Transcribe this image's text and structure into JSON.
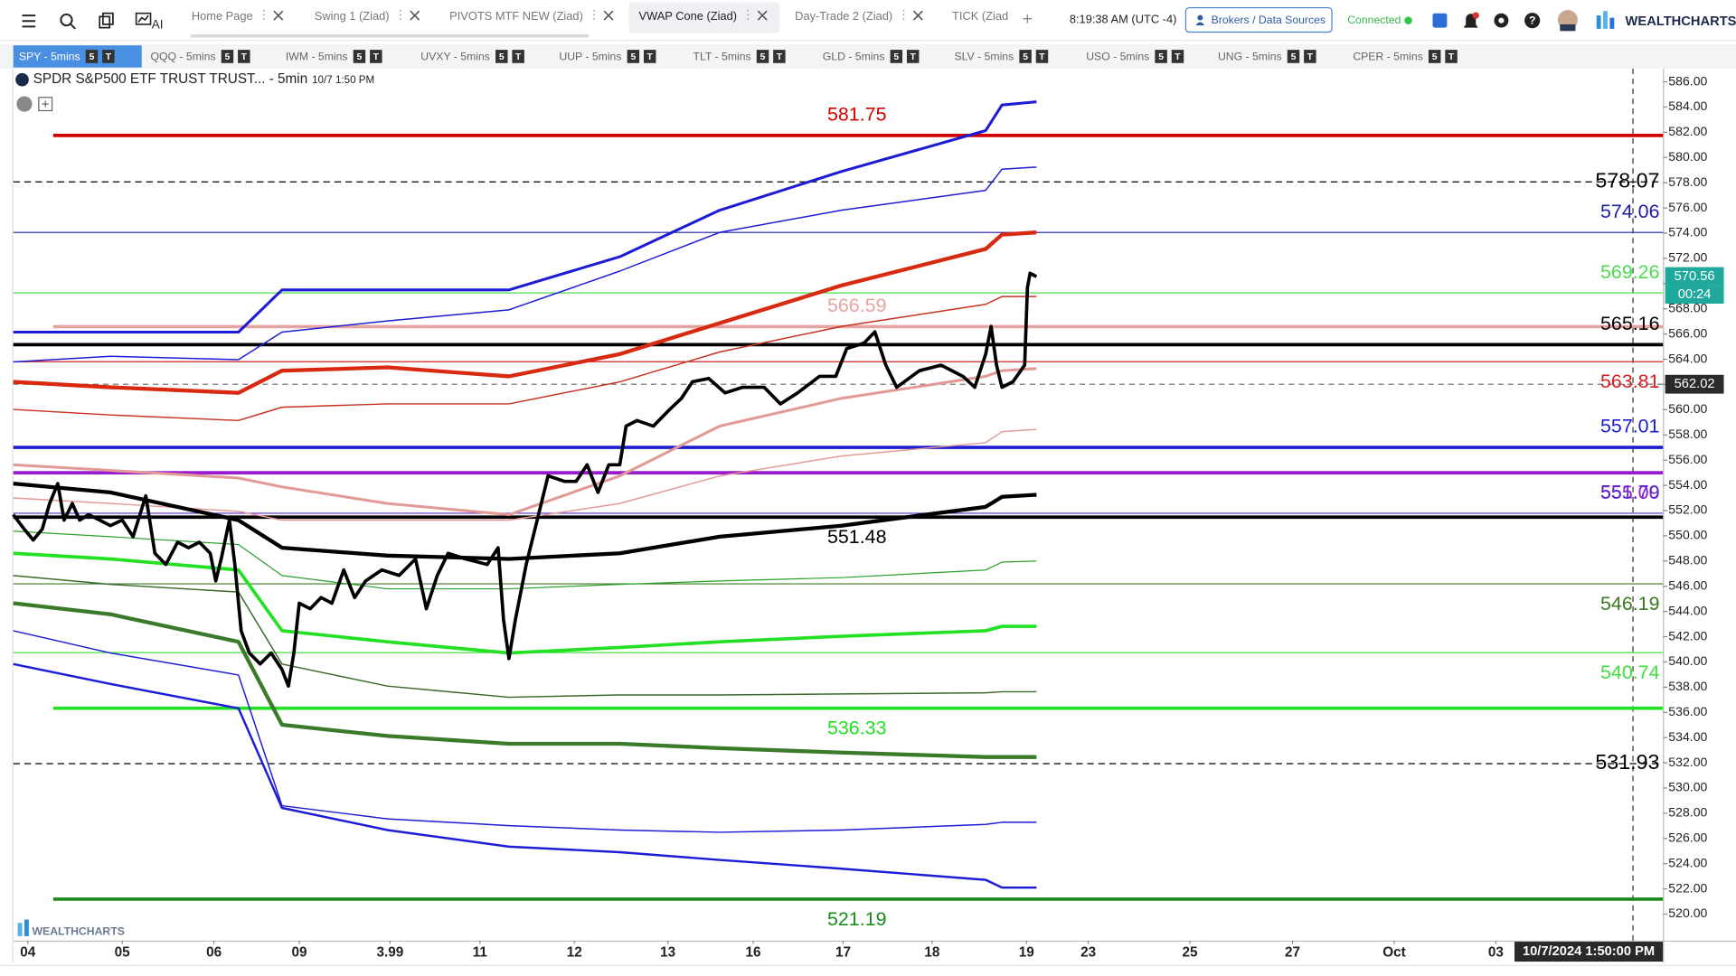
{
  "toolbar": {
    "ai": "AI",
    "tabs": [
      "Home Page",
      "Swing 1 (Ziad)",
      "PIVOTS MTF NEW (Ziad)",
      "VWAP Cone (Ziad)",
      "Day-Trade 2 (Ziad)",
      "TICK (Ziad"
    ],
    "active_tab": 3,
    "time": "8:19:38 AM",
    "timezone": "(UTC -4)",
    "brokers": "Brokers / Data Sources",
    "status": "Connected",
    "brand": "WEALTHCHARTS"
  },
  "symbol_tabs": [
    "SPY - 5mins",
    "QQQ - 5mins",
    "IWM - 5mins",
    "UVXY - 5mins",
    "UUP - 5mins",
    "TLT - 5mins",
    "GLD - 5mins",
    "SLV - 5mins",
    "USO - 5mins",
    "UNG - 5mins",
    "CPER - 5mins"
  ],
  "active_symbol": 0,
  "badges": [
    "5",
    "T"
  ],
  "chart_data": {
    "type": "line",
    "title": "SPDR S&P500 ETF TRUST TRUST... - 5min",
    "subtitle": "10/7 1:50 PM",
    "watermark": "WEALTHCHARTS",
    "xlim": [
      -0.16,
      18.01
    ],
    "xticks": [
      {
        "value": 0,
        "label": "04"
      },
      {
        "value": 1.04,
        "label": "05"
      },
      {
        "value": 2.05,
        "label": "06"
      },
      {
        "value": 2.99,
        "label": "09"
      },
      3.99,
      {
        "value": 4.98,
        "label": "11"
      },
      {
        "value": 6.02,
        "label": "12"
      },
      {
        "value": 7.05,
        "label": "13"
      },
      {
        "value": 7.99,
        "label": "16"
      },
      {
        "value": 8.98,
        "label": "17"
      },
      {
        "value": 9.96,
        "label": "18"
      },
      {
        "value": 11.0,
        "label": "19"
      },
      {
        "value": 11.68,
        "label": "23"
      },
      {
        "value": 12.8,
        "label": "25"
      },
      {
        "value": 13.93,
        "label": "27"
      },
      {
        "value": 15.05,
        "label": "Oct"
      },
      {
        "value": 16.17,
        "label": "03"
      }
    ],
    "ylim": [
      517.9,
      587.05
    ],
    "yticks": [
      {
        "value": 520,
        "label": "520.00"
      },
      {
        "value": 522,
        "label": "522.00"
      },
      {
        "value": 524,
        "label": "524.00"
      },
      {
        "value": 526,
        "label": "526.00"
      },
      {
        "value": 528,
        "label": "528.00"
      },
      {
        "value": 530,
        "label": "530.00"
      },
      {
        "value": 532,
        "label": "532.00"
      },
      {
        "value": 534,
        "label": "534.00"
      },
      {
        "value": 536,
        "label": "536.00"
      },
      {
        "value": 538,
        "label": "538.00"
      },
      {
        "value": 540,
        "label": "540.00"
      },
      {
        "value": 542,
        "label": "542.00"
      },
      {
        "value": 544,
        "label": "544.00"
      },
      {
        "value": 546,
        "label": "546.00"
      },
      {
        "value": 548,
        "label": "548.00"
      },
      {
        "value": 550,
        "label": "550.00"
      },
      {
        "value": 552,
        "label": "552.00"
      },
      {
        "value": 554,
        "label": "554.00"
      },
      {
        "value": 556,
        "label": "556.00"
      },
      {
        "value": 558,
        "label": "558.00"
      },
      {
        "value": 560,
        "label": "560.00"
      },
      {
        "value": 562,
        "label": "562.00"
      },
      {
        "value": 564,
        "label": "564.00"
      },
      {
        "value": 566,
        "label": "566.00"
      },
      {
        "value": 568,
        "label": "568.00"
      },
      {
        "value": 570,
        "label": "570.00"
      },
      {
        "value": 572,
        "label": "572.00"
      },
      {
        "value": 574,
        "label": "574.00"
      },
      {
        "value": 576,
        "label": "576.00"
      },
      {
        "value": 578,
        "label": "578.00"
      },
      {
        "value": 580,
        "label": "580.00"
      },
      {
        "value": 582,
        "label": "582.00"
      },
      {
        "value": 584,
        "label": "584.00"
      },
      {
        "value": 586,
        "label": "586.00"
      }
    ],
    "grid": false,
    "crosshair": {
      "x": 17.68,
      "x_label": "10/7/2024 1:50:00 PM",
      "y": 562.02
    },
    "last_price": 570.56,
    "countdown": "00:24",
    "last_price_color": "#1fa89c",
    "levels": [
      {
        "value": 581.75,
        "label": "581.75",
        "color": "#d40000",
        "width": 3,
        "style": "solid",
        "from": 0.28,
        "label_pos": "center",
        "label_side": "above"
      },
      {
        "value": 578.07,
        "label": "578.07",
        "color": "#000000",
        "width": 1,
        "style": "dashed",
        "label_pos": "right",
        "label_side": "on"
      },
      {
        "value": 574.06,
        "label": "574.06",
        "color": "#1c1ca6",
        "width": 1,
        "style": "solid",
        "label_pos": "right",
        "label_side": "above"
      },
      {
        "value": 569.26,
        "label": "569.26",
        "color": "#4cdc4c",
        "width": 1,
        "style": "solid",
        "label_pos": "right",
        "label_side": "above"
      },
      {
        "value": 566.59,
        "label": "566.59",
        "color": "#e6a4a0",
        "width": 3,
        "style": "solid",
        "from": 0.28,
        "label_pos": "center",
        "label_side": "above"
      },
      {
        "value": 565.16,
        "label": "565.16",
        "color": "#000000",
        "width": 3,
        "style": "solid",
        "label_pos": "right",
        "label_side": "above"
      },
      {
        "value": 563.81,
        "label": "563.81",
        "color": "#d42020",
        "width": 1,
        "style": "solid",
        "label_pos": "right",
        "label_side": "below"
      },
      {
        "value": 557.01,
        "label": "557.01",
        "color": "#1c1cd0",
        "width": 3,
        "style": "solid",
        "label_pos": "right",
        "label_side": "above"
      },
      {
        "value": 555,
        "label": "555.00",
        "color": "#9a1ad0",
        "width": 3,
        "style": "solid",
        "label_pos": "right",
        "label_side": "below"
      },
      {
        "value": 551.79,
        "label": "551.79",
        "color": "#5a2ad0",
        "width": 1,
        "style": "solid",
        "label_pos": "right",
        "label_side": "above"
      },
      {
        "value": 551.48,
        "label": "551.48",
        "color": "#000000",
        "width": 3,
        "style": "solid",
        "label_pos": "center",
        "label_side": "below"
      },
      {
        "value": 546.19,
        "label": "546.19",
        "color": "#3a7a20",
        "width": 1,
        "style": "solid",
        "label_pos": "right",
        "label_side": "below"
      },
      {
        "value": 540.74,
        "label": "540.74",
        "color": "#40e040",
        "width": 1,
        "style": "solid",
        "label_pos": "right",
        "label_side": "below"
      },
      {
        "value": 536.33,
        "label": "536.33",
        "color": "#22e022",
        "width": 3,
        "style": "solid",
        "from": 0.28,
        "label_pos": "center",
        "label_side": "below"
      },
      {
        "value": 531.93,
        "label": "531.93",
        "color": "#000000",
        "width": 1,
        "style": "dashed",
        "label_pos": "right",
        "label_side": "on"
      },
      {
        "value": 521.19,
        "label": "521.19",
        "color": "#1a8a1a",
        "width": 3,
        "style": "solid",
        "from": 0.28,
        "label_pos": "center",
        "label_side": "below"
      }
    ],
    "series": [
      {
        "color": "#1c1cd6",
        "width": 2.5,
        "x": [
          -0.16,
          0.91,
          2.32,
          2.8,
          3.96,
          5.3,
          6.52,
          7.62,
          8.96,
          10.55,
          10.73,
          11.11
        ],
        "values": [
          566.16,
          566.16,
          566.16,
          569.5,
          569.5,
          569.5,
          572.13,
          575.82,
          578.89,
          582.14,
          584.16,
          584.42
        ]
      },
      {
        "color": "#1c1cd6",
        "width": 1.2,
        "x": [
          -0.16,
          0.91,
          2.32,
          2.8,
          3.96,
          5.3,
          6.52,
          7.62,
          8.96,
          10.55,
          10.73,
          11.11
        ],
        "values": [
          563.79,
          564.23,
          563.97,
          566.16,
          567.04,
          567.92,
          570.99,
          574.06,
          575.82,
          577.4,
          579.07,
          579.24
        ]
      },
      {
        "color": "#d82a10",
        "width": 3.5,
        "x": [
          -0.16,
          0.91,
          2.32,
          2.8,
          3.96,
          5.3,
          6.52,
          7.62,
          8.96,
          10.55,
          10.73,
          11.11
        ],
        "values": [
          562.21,
          561.78,
          561.34,
          563.09,
          563.36,
          562.65,
          564.41,
          566.87,
          569.85,
          572.75,
          573.89,
          574.06
        ]
      },
      {
        "color": "#c83020",
        "width": 1.2,
        "x": [
          -0.16,
          0.91,
          2.32,
          2.8,
          3.96,
          5.3,
          6.52,
          7.62,
          8.96,
          10.55,
          10.73,
          11.11
        ],
        "values": [
          560.02,
          559.58,
          559.14,
          560.2,
          560.46,
          560.46,
          562.21,
          564.58,
          566.6,
          568.36,
          568.97,
          568.97
        ]
      },
      {
        "color": "#e29a96",
        "width": 2.5,
        "x": [
          -0.16,
          0.91,
          2.32,
          2.8,
          3.96,
          5.3,
          6.52,
          7.62,
          8.96,
          10.55,
          10.73,
          11.11
        ],
        "values": [
          555.63,
          555.19,
          554.58,
          553.88,
          552.56,
          551.68,
          554.75,
          558.7,
          560.9,
          562.65,
          563.09,
          563.27
        ]
      },
      {
        "color": "#e29a96",
        "width": 1.2,
        "x": [
          -0.16,
          0.91,
          2.32,
          2.8,
          3.96,
          5.3,
          6.52,
          7.62,
          8.96,
          10.55,
          10.73,
          11.11
        ],
        "values": [
          553.0,
          552.56,
          551.94,
          551.24,
          551.24,
          551.24,
          552.56,
          554.75,
          556.33,
          557.39,
          558.26,
          558.44
        ]
      },
      {
        "color": "#000000",
        "width": 3.5,
        "x": [
          -0.16,
          0.91,
          2.32,
          2.8,
          3.96,
          5.3,
          6.52,
          7.62,
          8.96,
          10.55,
          10.73,
          11.11
        ],
        "values": [
          554.14,
          553.44,
          551.24,
          549.05,
          548.43,
          548.17,
          548.61,
          549.93,
          550.8,
          552.3,
          553.09,
          553.26
        ]
      },
      {
        "color": "#2aa02a",
        "width": 1,
        "x": [
          -0.16,
          0.91,
          2.32,
          2.8,
          3.96,
          5.3,
          6.52,
          7.62,
          8.96,
          10.55,
          10.73,
          11.11
        ],
        "values": [
          550.37,
          549.93,
          549.31,
          546.85,
          545.8,
          545.8,
          546.15,
          546.42,
          546.68,
          547.29,
          547.91,
          548.0
        ]
      },
      {
        "color": "#22e022",
        "width": 3,
        "x": [
          -0.16,
          0.91,
          2.32,
          2.8,
          3.96,
          5.3,
          6.52,
          7.62,
          8.96,
          10.55,
          10.73,
          11.11
        ],
        "values": [
          548.61,
          548.17,
          547.29,
          542.47,
          541.59,
          540.71,
          541.15,
          541.59,
          542.03,
          542.47,
          542.82,
          542.82
        ]
      },
      {
        "color": "#3a6a2a",
        "width": 1.2,
        "x": [
          -0.16,
          0.91,
          2.32,
          2.8,
          3.96,
          5.3,
          6.52,
          7.62,
          8.96,
          10.55,
          10.73,
          11.11
        ],
        "values": [
          546.85,
          546.15,
          545.54,
          539.83,
          538.08,
          537.2,
          537.38,
          537.38,
          537.46,
          537.55,
          537.64,
          537.64
        ]
      },
      {
        "color": "#3a7a2a",
        "width": 3.5,
        "x": [
          -0.16,
          0.91,
          2.32,
          2.8,
          3.96,
          5.3,
          6.52,
          7.62,
          8.96,
          10.55,
          10.73,
          11.11
        ],
        "values": [
          544.66,
          543.78,
          541.59,
          535.01,
          534.13,
          533.51,
          533.51,
          533.16,
          532.81,
          532.46,
          532.46,
          532.46
        ]
      },
      {
        "color": "#1c1cd6",
        "width": 1.2,
        "x": [
          -0.16,
          0.91,
          2.32,
          2.8,
          3.96,
          5.3,
          6.52,
          7.62,
          8.96,
          10.55,
          10.73,
          11.11
        ],
        "values": [
          542.47,
          540.71,
          538.96,
          528.6,
          527.55,
          527.02,
          526.67,
          526.49,
          526.67,
          527.11,
          527.28,
          527.28
        ]
      },
      {
        "color": "#1c1cd6",
        "width": 2,
        "x": [
          -0.16,
          0.91,
          2.32,
          2.8,
          3.96,
          5.3,
          6.52,
          7.62,
          8.96,
          10.55,
          10.73,
          11.11
        ],
        "values": [
          539.83,
          538.25,
          536.32,
          528.42,
          526.67,
          525.35,
          524.91,
          524.3,
          523.6,
          522.72,
          522.1,
          522.1
        ]
      },
      {
        "color": "#000000",
        "width": 3,
        "x": [
          -0.16,
          -0.04,
          0.06,
          0.16,
          0.24,
          0.33,
          0.4,
          0.49,
          0.57,
          0.67,
          0.79,
          0.91,
          1.04,
          1.16,
          1.3,
          1.4,
          1.52,
          1.65,
          1.77,
          1.89,
          2.01,
          2.07,
          2.13,
          2.22,
          2.28,
          2.35,
          2.44,
          2.56,
          2.68,
          2.8,
          2.87,
          2.93,
          2.99,
          3.11,
          3.23,
          3.35,
          3.48,
          3.6,
          3.72,
          3.9,
          4.09,
          4.27,
          4.39,
          4.51,
          4.63,
          4.82,
          5.06,
          5.18,
          5.24,
          5.3,
          5.37,
          5.49,
          5.61,
          5.73,
          5.91,
          6.04,
          6.16,
          6.28,
          6.4,
          6.52,
          6.59,
          6.71,
          6.89,
          7.07,
          7.2,
          7.32,
          7.5,
          7.68,
          7.87,
          8.11,
          8.29,
          8.48,
          8.72,
          8.9,
          9.02,
          9.21,
          9.33,
          9.45,
          9.57,
          9.82,
          10.06,
          10.3,
          10.43,
          10.55,
          10.61,
          10.67,
          10.73,
          10.85,
          10.98,
          11.01,
          11.04,
          11.11
        ],
        "values": [
          551.68,
          550.54,
          549.67,
          550.54,
          552.56,
          554.14,
          551.25,
          552.56,
          551.25,
          551.68,
          551.25,
          550.81,
          551.25,
          549.93,
          553.18,
          548.61,
          547.73,
          549.49,
          549.05,
          549.49,
          548.61,
          546.42,
          548.17,
          551.25,
          547.73,
          542.47,
          540.71,
          539.84,
          540.71,
          539.4,
          538.08,
          540.71,
          544.66,
          544.22,
          545.1,
          544.66,
          547.3,
          545.1,
          546.42,
          547.3,
          546.86,
          548.17,
          544.22,
          546.86,
          548.61,
          548.17,
          547.73,
          549.05,
          543.35,
          540.27,
          543.35,
          547.73,
          551.25,
          554.76,
          554.32,
          554.32,
          555.63,
          553.44,
          555.63,
          555.63,
          558.7,
          559.14,
          558.7,
          560.02,
          560.9,
          562.22,
          562.48,
          561.34,
          561.78,
          561.78,
          560.46,
          561.34,
          562.65,
          562.65,
          564.85,
          565.29,
          566.17,
          563.53,
          561.78,
          563.09,
          563.53,
          562.65,
          561.78,
          564.41,
          566.6,
          563.53,
          561.78,
          562.22,
          563.53,
          569.68,
          570.82,
          570.55
        ]
      }
    ]
  }
}
